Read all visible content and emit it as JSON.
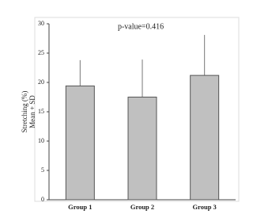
{
  "chart_data": {
    "type": "bar",
    "annotation": "p-value=0.416",
    "ylabel": [
      "Stretching (%)",
      "Mean + SD"
    ],
    "categories": [
      "Group 1",
      "Group 2",
      "Group 3"
    ],
    "values": [
      19.4,
      17.5,
      21.2
    ],
    "errors": [
      4.4,
      6.4,
      6.9
    ],
    "color": "#c0c0c0",
    "ylim": [
      0,
      30
    ],
    "yticks": [
      0,
      5,
      10,
      15,
      20,
      25,
      30
    ]
  }
}
